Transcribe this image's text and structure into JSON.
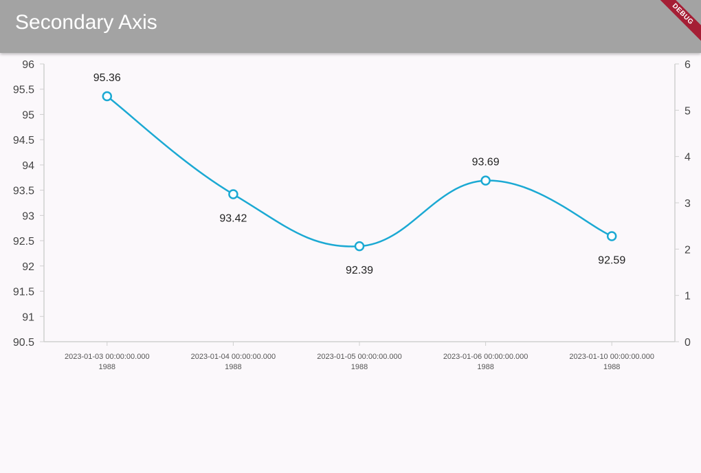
{
  "appbar": {
    "title": "Secondary Axis",
    "debug_label": "DEBUG"
  },
  "chart_data": {
    "type": "line",
    "title": "",
    "x_categories": [
      [
        "2023-01-03 00:00:00.000",
        "1988"
      ],
      [
        "2023-01-04 00:00:00.000",
        "1988"
      ],
      [
        "2023-01-05 00:00:00.000",
        "1988"
      ],
      [
        "2023-01-06 00:00:00.000",
        "1988"
      ],
      [
        "2023-01-10 00:00:00.000",
        "1988"
      ]
    ],
    "series": [
      {
        "values": [
          95.36,
          93.42,
          92.39,
          93.69,
          92.59
        ],
        "color": "#1ba9d3"
      }
    ],
    "data_labels": [
      "95.36",
      "93.42",
      "92.39",
      "93.69",
      "92.59"
    ],
    "y_primary": {
      "range": [
        90.5,
        96
      ],
      "ticks": [
        "96",
        "95.5",
        "95",
        "94.5",
        "94",
        "93.5",
        "93",
        "92.5",
        "92",
        "91.5",
        "91",
        "90.5"
      ]
    },
    "y_secondary": {
      "range": [
        0,
        6
      ],
      "ticks": [
        "6",
        "5",
        "4",
        "3",
        "2",
        "1",
        "0"
      ]
    },
    "grid": false,
    "curve": "smooth"
  }
}
